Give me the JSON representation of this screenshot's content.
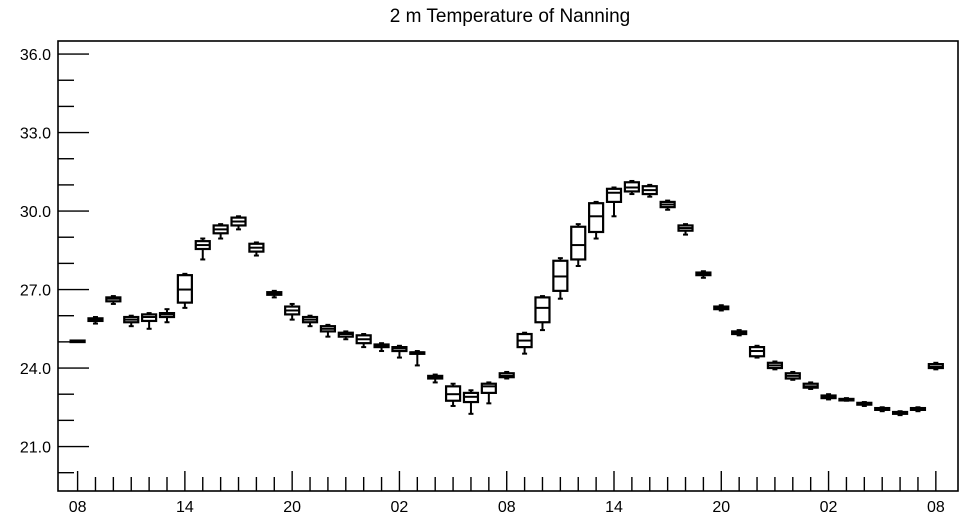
{
  "chart_data": {
    "type": "box",
    "title": "2 m Temperature of Nanning",
    "xlabel": "",
    "ylabel": "",
    "ylim": [
      19.3,
      36.5
    ],
    "xlim": [
      -0.5,
      48.5
    ],
    "y_major_ticks": [
      21.0,
      24.0,
      27.0,
      30.0,
      33.0,
      36.0
    ],
    "y_tick_labels": [
      "21.0",
      "24.0",
      "27.0",
      "30.0",
      "33.0",
      "36.0"
    ],
    "y_minor_step": 1.0,
    "x_major_ticks": [
      0,
      6,
      12,
      18,
      24,
      30,
      36,
      42,
      48
    ],
    "x_tick_labels": [
      "08",
      "14",
      "20",
      "02",
      "08",
      "14",
      "20",
      "02",
      "08"
    ],
    "x_minor_step": 1,
    "grid": false,
    "boxes": [
      {
        "x": 0,
        "min": 25.0,
        "q1": 25.0,
        "median": 25.0,
        "q3": 25.05,
        "max": 25.05
      },
      {
        "x": 1,
        "min": 25.7,
        "q1": 25.8,
        "median": 25.85,
        "q3": 25.9,
        "max": 25.95
      },
      {
        "x": 2,
        "min": 26.45,
        "q1": 26.55,
        "median": 26.65,
        "q3": 26.7,
        "max": 26.75
      },
      {
        "x": 3,
        "min": 25.6,
        "q1": 25.75,
        "median": 25.85,
        "q3": 25.95,
        "max": 26.0
      },
      {
        "x": 4,
        "min": 25.5,
        "q1": 25.8,
        "median": 25.95,
        "q3": 26.05,
        "max": 26.1
      },
      {
        "x": 5,
        "min": 25.75,
        "q1": 25.95,
        "median": 26.05,
        "q3": 26.1,
        "max": 26.25
      },
      {
        "x": 6,
        "min": 26.3,
        "q1": 26.5,
        "median": 27.0,
        "q3": 27.55,
        "max": 27.6
      },
      {
        "x": 7,
        "min": 28.15,
        "q1": 28.55,
        "median": 28.7,
        "q3": 28.85,
        "max": 28.95
      },
      {
        "x": 8,
        "min": 28.95,
        "q1": 29.15,
        "median": 29.3,
        "q3": 29.45,
        "max": 29.5
      },
      {
        "x": 9,
        "min": 29.3,
        "q1": 29.45,
        "median": 29.6,
        "q3": 29.75,
        "max": 29.8
      },
      {
        "x": 10,
        "min": 28.3,
        "q1": 28.45,
        "median": 28.6,
        "q3": 28.75,
        "max": 28.8
      },
      {
        "x": 11,
        "min": 26.7,
        "q1": 26.8,
        "median": 26.85,
        "q3": 26.9,
        "max": 26.95
      },
      {
        "x": 12,
        "min": 25.85,
        "q1": 26.05,
        "median": 26.2,
        "q3": 26.35,
        "max": 26.45
      },
      {
        "x": 13,
        "min": 25.6,
        "q1": 25.75,
        "median": 25.85,
        "q3": 25.95,
        "max": 26.0
      },
      {
        "x": 14,
        "min": 25.2,
        "q1": 25.4,
        "median": 25.5,
        "q3": 25.6,
        "max": 25.65
      },
      {
        "x": 15,
        "min": 25.1,
        "q1": 25.2,
        "median": 25.3,
        "q3": 25.35,
        "max": 25.4
      },
      {
        "x": 16,
        "min": 24.8,
        "q1": 24.95,
        "median": 25.1,
        "q3": 25.25,
        "max": 25.3
      },
      {
        "x": 17,
        "min": 24.65,
        "q1": 24.8,
        "median": 24.85,
        "q3": 24.9,
        "max": 24.95
      },
      {
        "x": 18,
        "min": 24.4,
        "q1": 24.65,
        "median": 24.75,
        "q3": 24.8,
        "max": 24.85
      },
      {
        "x": 19,
        "min": 24.1,
        "q1": 24.55,
        "median": 24.6,
        "q3": 24.6,
        "max": 24.65
      },
      {
        "x": 20,
        "min": 23.45,
        "q1": 23.6,
        "median": 23.65,
        "q3": 23.7,
        "max": 23.75
      },
      {
        "x": 21,
        "min": 22.55,
        "q1": 22.75,
        "median": 23.0,
        "q3": 23.3,
        "max": 23.4
      },
      {
        "x": 22,
        "min": 22.25,
        "q1": 22.7,
        "median": 22.9,
        "q3": 23.05,
        "max": 23.15
      },
      {
        "x": 23,
        "min": 22.65,
        "q1": 23.05,
        "median": 23.3,
        "q3": 23.4,
        "max": 23.45
      },
      {
        "x": 24,
        "min": 23.6,
        "q1": 23.65,
        "median": 23.7,
        "q3": 23.8,
        "max": 23.85
      },
      {
        "x": 25,
        "min": 24.55,
        "q1": 24.8,
        "median": 25.05,
        "q3": 25.3,
        "max": 25.35
      },
      {
        "x": 26,
        "min": 25.45,
        "q1": 25.75,
        "median": 26.3,
        "q3": 26.7,
        "max": 26.75
      },
      {
        "x": 27,
        "min": 26.65,
        "q1": 26.95,
        "median": 27.5,
        "q3": 28.1,
        "max": 28.2
      },
      {
        "x": 28,
        "min": 27.9,
        "q1": 28.15,
        "median": 28.7,
        "q3": 29.4,
        "max": 29.5
      },
      {
        "x": 29,
        "min": 28.95,
        "q1": 29.2,
        "median": 29.8,
        "q3": 30.3,
        "max": 30.35
      },
      {
        "x": 30,
        "min": 29.8,
        "q1": 30.35,
        "median": 30.7,
        "q3": 30.85,
        "max": 30.9
      },
      {
        "x": 31,
        "min": 30.65,
        "q1": 30.75,
        "median": 30.9,
        "q3": 31.1,
        "max": 31.15
      },
      {
        "x": 32,
        "min": 30.55,
        "q1": 30.65,
        "median": 30.8,
        "q3": 30.95,
        "max": 31.0
      },
      {
        "x": 33,
        "min": 30.05,
        "q1": 30.15,
        "median": 30.25,
        "q3": 30.35,
        "max": 30.4
      },
      {
        "x": 34,
        "min": 29.1,
        "q1": 29.25,
        "median": 29.35,
        "q3": 29.45,
        "max": 29.5
      },
      {
        "x": 35,
        "min": 27.45,
        "q1": 27.55,
        "median": 27.6,
        "q3": 27.65,
        "max": 27.7
      },
      {
        "x": 36,
        "min": 26.2,
        "q1": 26.25,
        "median": 26.3,
        "q3": 26.35,
        "max": 26.4
      },
      {
        "x": 37,
        "min": 25.25,
        "q1": 25.3,
        "median": 25.35,
        "q3": 25.4,
        "max": 25.45
      },
      {
        "x": 38,
        "min": 24.4,
        "q1": 24.45,
        "median": 24.65,
        "q3": 24.8,
        "max": 24.85
      },
      {
        "x": 39,
        "min": 23.95,
        "q1": 24.0,
        "median": 24.1,
        "q3": 24.2,
        "max": 24.25
      },
      {
        "x": 40,
        "min": 23.55,
        "q1": 23.6,
        "median": 23.7,
        "q3": 23.8,
        "max": 23.85
      },
      {
        "x": 41,
        "min": 23.2,
        "q1": 23.25,
        "median": 23.3,
        "q3": 23.4,
        "max": 23.45
      },
      {
        "x": 42,
        "min": 22.8,
        "q1": 22.85,
        "median": 22.9,
        "q3": 22.95,
        "max": 23.0
      },
      {
        "x": 43,
        "min": 22.75,
        "q1": 22.78,
        "median": 22.8,
        "q3": 22.82,
        "max": 22.85
      },
      {
        "x": 44,
        "min": 22.55,
        "q1": 22.6,
        "median": 22.63,
        "q3": 22.67,
        "max": 22.7
      },
      {
        "x": 45,
        "min": 22.35,
        "q1": 22.4,
        "median": 22.43,
        "q3": 22.47,
        "max": 22.5
      },
      {
        "x": 46,
        "min": 22.2,
        "q1": 22.25,
        "median": 22.28,
        "q3": 22.32,
        "max": 22.35
      },
      {
        "x": 47,
        "min": 22.35,
        "q1": 22.4,
        "median": 22.43,
        "q3": 22.47,
        "max": 22.5
      },
      {
        "x": 48,
        "min": 23.95,
        "q1": 24.0,
        "median": 24.05,
        "q3": 24.15,
        "max": 24.2
      }
    ]
  },
  "colors": {
    "axis": "#000000",
    "box": "#000000",
    "background": "#ffffff"
  }
}
